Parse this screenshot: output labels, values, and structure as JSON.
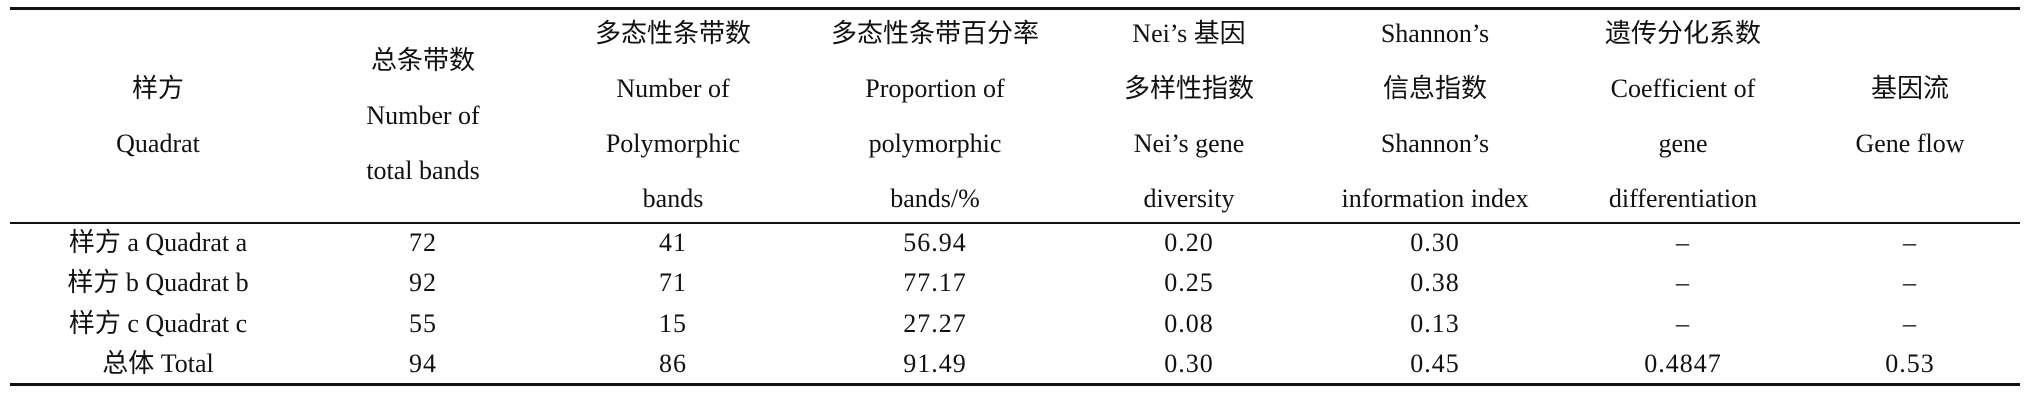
{
  "table": {
    "header": [
      [
        "样方",
        "Quadrat"
      ],
      [
        "总条带数",
        "Number of",
        "total bands"
      ],
      [
        "多态性条带数",
        "Number of",
        "Polymorphic",
        "bands"
      ],
      [
        "多态性条带百分率",
        "Proportion of",
        "polymorphic",
        "bands/%"
      ],
      [
        "Nei’s 基因",
        "多样性指数",
        "Nei’s gene",
        "diversity"
      ],
      [
        "Shannon’s",
        "信息指数",
        "Shannon’s",
        "information index"
      ],
      [
        "遗传分化系数",
        "Coefficient of",
        "gene",
        "differentiation"
      ],
      [
        "基因流",
        "Gene flow"
      ]
    ],
    "rows": [
      [
        "样方 a Quadrat a",
        "72",
        "41",
        "56.94",
        "0.20",
        "0.30",
        "–",
        "–"
      ],
      [
        "样方 b Quadrat b",
        "92",
        "71",
        "77.17",
        "0.25",
        "0.38",
        "–",
        "–"
      ],
      [
        "样方 c Quadrat c",
        "55",
        "15",
        "27.27",
        "0.08",
        "0.13",
        "–",
        "–"
      ],
      [
        "总体 Total",
        "94",
        "86",
        "91.49",
        "0.30",
        "0.45",
        "0.4847",
        "0.53"
      ]
    ]
  }
}
